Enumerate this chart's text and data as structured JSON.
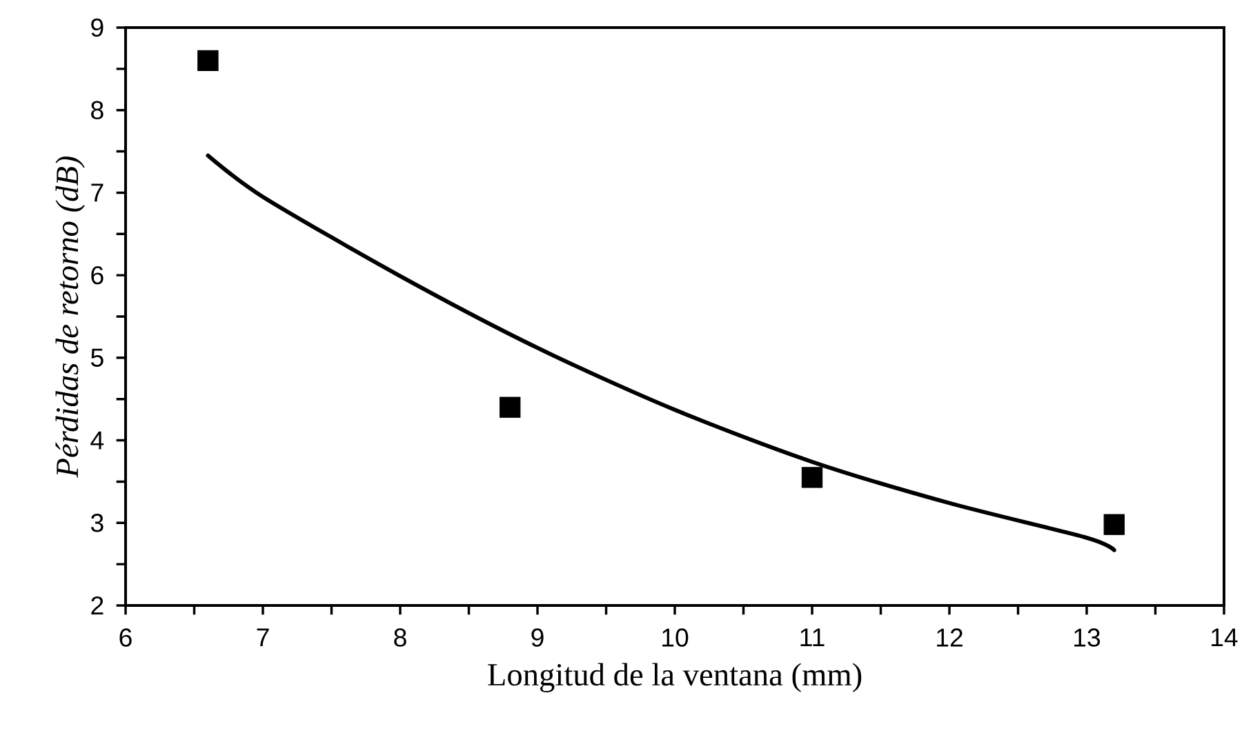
{
  "chart_data": {
    "type": "scatter",
    "xlabel": "Longitud de la ventana (mm)",
    "ylabel": "Pérdidas de retorno (dB)",
    "xlim": [
      6,
      14
    ],
    "ylim": [
      2,
      9
    ],
    "xticks": [
      6,
      {
        "value": 6.5,
        "label": null
      },
      7,
      {
        "value": 7.5,
        "label": null
      },
      8,
      {
        "value": 8.5,
        "label": null
      },
      9,
      {
        "value": 9.5,
        "label": null
      },
      10,
      {
        "value": 10.5,
        "label": null
      },
      11,
      {
        "value": 11.5,
        "label": null
      },
      12,
      {
        "value": 12.5,
        "label": null
      },
      13,
      {
        "value": 13.5,
        "label": null
      },
      14
    ],
    "yticks": [
      2,
      {
        "value": 2.5,
        "label": null
      },
      3,
      {
        "value": 3.5,
        "label": null
      },
      4,
      {
        "value": 4.5,
        "label": null
      },
      5,
      {
        "value": 5.5,
        "label": null
      },
      6,
      {
        "value": 6.5,
        "label": null
      },
      7,
      {
        "value": 7.5,
        "label": null
      },
      8,
      {
        "value": 8.5,
        "label": null
      },
      9
    ],
    "marker": "square",
    "series": [
      {
        "type": "scatter",
        "color": "#000000",
        "x": [
          6.6,
          8.8,
          11,
          13.2
        ],
        "values": [
          8.6,
          4.4,
          3.55,
          2.98
        ]
      },
      {
        "type": "line",
        "color": "#000000",
        "marker": "none",
        "x": [
          6.6,
          7,
          8,
          9,
          10,
          11,
          12,
          13,
          13.2
        ],
        "values": [
          7.45,
          6.95,
          5.99,
          5.12,
          4.37,
          3.74,
          3.24,
          2.82,
          2.67
        ]
      }
    ]
  }
}
